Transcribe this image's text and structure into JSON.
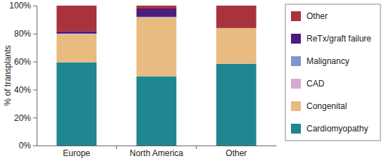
{
  "chart_data": {
    "type": "bar",
    "stacked": true,
    "orientation": "vertical",
    "y_label": "% of transplants",
    "categories": [
      "Europe",
      "North America",
      "Other"
    ],
    "series": [
      {
        "name": "Cardiomyopathy",
        "color": "#20868f",
        "values": [
          59.5,
          49.5,
          58.5
        ]
      },
      {
        "name": "Congenital",
        "color": "#e8bb80",
        "values": [
          20,
          42,
          25.5
        ]
      },
      {
        "name": "CAD",
        "color": "#d7a8d2",
        "values": [
          0.3,
          0.2,
          0
        ]
      },
      {
        "name": "Malignancy",
        "color": "#7f96cf",
        "values": [
          0.2,
          0.3,
          0
        ]
      },
      {
        "name": "ReTx/graft failure",
        "color": "#4d1d7c",
        "values": [
          1.5,
          6,
          0
        ]
      },
      {
        "name": "Other",
        "color": "#a8333d",
        "values": [
          18.5,
          2,
          16
        ]
      }
    ],
    "ylim": [
      0,
      100
    ],
    "yticks": [
      {
        "value": 0,
        "label": "0%"
      },
      {
        "value": 20,
        "label": "20%"
      },
      {
        "value": 40,
        "label": "40%"
      },
      {
        "value": 60,
        "label": "60%"
      },
      {
        "value": 80,
        "label": "80%"
      },
      {
        "value": 100,
        "label": "100%"
      }
    ],
    "grid": false,
    "legend": "right"
  }
}
